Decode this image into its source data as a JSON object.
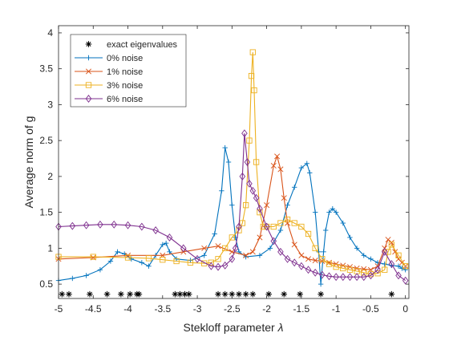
{
  "chart_data": {
    "type": "line",
    "title": "",
    "xlabel_text": "Stekloff parameter ",
    "xlabel_symbol": "λ",
    "ylabel": "Average norm of g",
    "xlim": [
      -5,
      0.05
    ],
    "ylim": [
      0.3,
      4.1
    ],
    "x_ticks": [
      -5,
      -4.5,
      -4,
      -3.5,
      -3,
      -2.5,
      -2,
      -1.5,
      -1,
      -0.5,
      0
    ],
    "x_tick_labels": [
      "-5",
      "-4.5",
      "-4",
      "-3.5",
      "-3",
      "-2.5",
      "-2",
      "-1.5",
      "-1",
      "-0.5",
      "0"
    ],
    "y_ticks": [
      0.5,
      1,
      1.5,
      2,
      2.5,
      3,
      3.5,
      4
    ],
    "y_tick_labels": [
      "0.5",
      "1",
      "1.5",
      "2",
      "2.5",
      "3",
      "3.5",
      "4"
    ],
    "grid": false,
    "legend_position": "top-left",
    "eigenvalues": {
      "name": "exact eigenvalues",
      "color": "#000000",
      "marker": "asterisk",
      "y": 0.36,
      "x": [
        -4.95,
        -4.85,
        -4.55,
        -4.3,
        -4.1,
        -3.97,
        -3.87,
        -3.84,
        -3.32,
        -3.25,
        -3.18,
        -3.12,
        -2.7,
        -2.6,
        -2.5,
        -2.4,
        -2.3,
        -2.2,
        -1.97,
        -1.75,
        -1.52,
        -1.22,
        -0.2
      ]
    },
    "series": [
      {
        "name": "0% noise",
        "color": "#0072BD",
        "marker": "plus",
        "x": [
          -5,
          -4.8,
          -4.6,
          -4.4,
          -4.25,
          -4.15,
          -4.05,
          -3.95,
          -3.8,
          -3.7,
          -3.6,
          -3.5,
          -3.45,
          -3.4,
          -3.3,
          -3.1,
          -2.9,
          -2.75,
          -2.65,
          -2.6,
          -2.55,
          -2.5,
          -2.45,
          -2.4,
          -2.3,
          -2.1,
          -1.95,
          -1.8,
          -1.7,
          -1.6,
          -1.5,
          -1.42,
          -1.38,
          -1.3,
          -1.25,
          -1.22,
          -1.18,
          -1.15,
          -1.1,
          -1.05,
          -1.0,
          -0.9,
          -0.8,
          -0.7,
          -0.6,
          -0.5,
          -0.4,
          -0.3,
          -0.2,
          -0.1,
          -0.05,
          0
        ],
        "y": [
          0.55,
          0.58,
          0.62,
          0.7,
          0.82,
          0.95,
          0.92,
          0.85,
          0.8,
          0.75,
          0.9,
          1.05,
          1.07,
          0.95,
          0.85,
          0.83,
          0.9,
          1.2,
          1.8,
          2.4,
          2.2,
          1.6,
          1.15,
          0.95,
          0.88,
          0.9,
          1.0,
          1.25,
          1.6,
          1.85,
          2.12,
          2.18,
          2.05,
          1.5,
          0.95,
          0.5,
          0.95,
          1.25,
          1.5,
          1.55,
          1.5,
          1.35,
          1.15,
          1.0,
          0.9,
          0.85,
          0.8,
          0.78,
          0.76,
          0.75,
          0.72,
          0.7
        ]
      },
      {
        "name": "1% noise",
        "color": "#D95319",
        "marker": "x",
        "x": [
          -5,
          -4.5,
          -4,
          -3.5,
          -3.2,
          -2.9,
          -2.7,
          -2.5,
          -2.3,
          -2.2,
          -2.1,
          -2.0,
          -1.9,
          -1.85,
          -1.8,
          -1.75,
          -1.7,
          -1.6,
          -1.5,
          -1.4,
          -1.3,
          -1.2,
          -1.1,
          -1.0,
          -0.9,
          -0.8,
          -0.7,
          -0.6,
          -0.5,
          -0.4,
          -0.3,
          -0.25,
          -0.2,
          -0.15,
          -0.1,
          -0.05,
          0
        ],
        "y": [
          0.85,
          0.87,
          0.9,
          0.9,
          0.95,
          1.0,
          1.03,
          0.95,
          0.9,
          0.95,
          1.15,
          1.6,
          2.15,
          2.28,
          2.1,
          1.7,
          1.35,
          1.05,
          0.9,
          0.85,
          0.83,
          0.82,
          0.8,
          0.78,
          0.76,
          0.74,
          0.72,
          0.71,
          0.7,
          0.75,
          1.0,
          1.12,
          1.08,
          0.95,
          0.85,
          0.8,
          0.75
        ]
      },
      {
        "name": "3% noise",
        "color": "#EDB120",
        "marker": "square",
        "x": [
          -5,
          -4.5,
          -4,
          -3.7,
          -3.5,
          -3.3,
          -3.1,
          -2.9,
          -2.8,
          -2.7,
          -2.6,
          -2.5,
          -2.4,
          -2.35,
          -2.3,
          -2.25,
          -2.22,
          -2.2,
          -2.18,
          -2.15,
          -2.1,
          -2.05,
          -2.0,
          -1.9,
          -1.8,
          -1.7,
          -1.6,
          -1.5,
          -1.4,
          -1.3,
          -1.2,
          -1.1,
          -1.0,
          -0.9,
          -0.8,
          -0.7,
          -0.6,
          -0.5,
          -0.4,
          -0.3,
          -0.25,
          -0.2,
          -0.1,
          0
        ],
        "y": [
          0.88,
          0.88,
          0.87,
          0.86,
          0.84,
          0.82,
          0.8,
          0.79,
          0.8,
          0.85,
          1.0,
          1.15,
          1.25,
          1.35,
          1.6,
          2.5,
          3.4,
          3.73,
          3.2,
          2.2,
          1.5,
          1.3,
          1.3,
          1.3,
          1.35,
          1.4,
          1.35,
          1.3,
          1.2,
          1.0,
          0.85,
          0.78,
          0.74,
          0.72,
          0.7,
          0.68,
          0.66,
          0.64,
          0.65,
          0.7,
          0.95,
          1.05,
          0.9,
          0.75
        ]
      },
      {
        "name": "6% noise",
        "color": "#7E2F8E",
        "marker": "diamond",
        "x": [
          -5,
          -4.8,
          -4.6,
          -4.4,
          -4.2,
          -4.0,
          -3.8,
          -3.6,
          -3.4,
          -3.2,
          -3.0,
          -2.8,
          -2.7,
          -2.6,
          -2.5,
          -2.45,
          -2.4,
          -2.35,
          -2.32,
          -2.28,
          -2.25,
          -2.2,
          -2.15,
          -2.1,
          -2.0,
          -1.9,
          -1.8,
          -1.7,
          -1.6,
          -1.5,
          -1.4,
          -1.3,
          -1.2,
          -1.1,
          -1.0,
          -0.9,
          -0.8,
          -0.7,
          -0.6,
          -0.5,
          -0.4,
          -0.3,
          -0.2,
          -0.1,
          0
        ],
        "y": [
          1.3,
          1.31,
          1.32,
          1.33,
          1.33,
          1.32,
          1.3,
          1.25,
          1.15,
          1.0,
          0.85,
          0.75,
          0.74,
          0.76,
          0.85,
          1.0,
          1.3,
          2.0,
          2.6,
          2.2,
          1.9,
          1.8,
          1.7,
          1.55,
          1.3,
          1.1,
          0.95,
          0.85,
          0.8,
          0.75,
          0.7,
          0.66,
          0.63,
          0.61,
          0.6,
          0.6,
          0.6,
          0.6,
          0.6,
          0.62,
          0.7,
          0.95,
          0.78,
          0.62,
          0.55
        ]
      }
    ]
  }
}
